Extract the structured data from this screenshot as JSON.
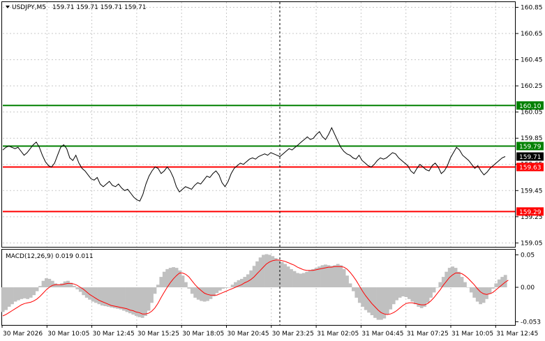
{
  "header": {
    "symbol_label": "USDJPY,M5",
    "ohlc": "159.71 159.71 159.71 159.71"
  },
  "macd_header": {
    "label": "MACD(12,26,9) 0.019 0.011"
  },
  "chart_data": [
    {
      "type": "line",
      "title": "USDJPY,M5",
      "ylim": [
        159.02,
        160.89
      ],
      "y_ticks": [
        "160.85",
        "160.65",
        "160.45",
        "160.25",
        "160.05",
        "159.85",
        "159.65",
        "159.45",
        "159.25",
        "159.05"
      ],
      "y_tick_values": [
        160.85,
        160.65,
        160.45,
        160.25,
        160.05,
        159.85,
        159.65,
        159.45,
        159.25,
        159.05
      ],
      "x_ticks": [
        "30 Mar 2026",
        "30 Mar 10:05",
        "30 Mar 12:45",
        "30 Mar 15:25",
        "30 Mar 18:05",
        "30 Mar 20:45",
        "30 Mar 23:25",
        "31 Mar 02:05",
        "31 Mar 04:45",
        "31 Mar 07:25",
        "31 Mar 10:05",
        "31 Mar 12:45"
      ],
      "current_price": {
        "label": "159.71",
        "value": 159.71
      },
      "levels": [
        {
          "label": "160.10",
          "value": 160.1,
          "color": "#008000"
        },
        {
          "label": "159.79",
          "value": 159.79,
          "color": "#008000"
        },
        {
          "label": "159.63",
          "value": 159.63,
          "color": "#ff0000"
        },
        {
          "label": "159.29",
          "value": 159.29,
          "color": "#ff0000"
        }
      ],
      "series": [
        {
          "color": "#000000",
          "values": [
            159.76,
            159.78,
            159.79,
            159.78,
            159.77,
            159.78,
            159.75,
            159.72,
            159.74,
            159.77,
            159.8,
            159.82,
            159.78,
            159.72,
            159.67,
            159.64,
            159.63,
            159.66,
            159.72,
            159.78,
            159.8,
            159.77,
            159.7,
            159.68,
            159.72,
            159.66,
            159.62,
            159.6,
            159.57,
            159.54,
            159.53,
            159.55,
            159.5,
            159.48,
            159.5,
            159.52,
            159.49,
            159.48,
            159.5,
            159.47,
            159.45,
            159.46,
            159.43,
            159.4,
            159.38,
            159.37,
            159.42,
            159.5,
            159.56,
            159.6,
            159.63,
            159.62,
            159.58,
            159.6,
            159.63,
            159.6,
            159.55,
            159.48,
            159.44,
            159.46,
            159.48,
            159.47,
            159.46,
            159.49,
            159.51,
            159.5,
            159.53,
            159.56,
            159.55,
            159.58,
            159.6,
            159.57,
            159.51,
            159.48,
            159.52,
            159.58,
            159.62,
            159.64,
            159.66,
            159.65,
            159.67,
            159.69,
            159.7,
            159.69,
            159.71,
            159.72,
            159.73,
            159.72,
            159.74,
            159.73,
            159.72,
            159.71,
            159.73,
            159.75,
            159.77,
            159.76,
            159.78,
            159.8,
            159.82,
            159.84,
            159.86,
            159.84,
            159.85,
            159.88,
            159.9,
            159.86,
            159.84,
            159.88,
            159.93,
            159.88,
            159.83,
            159.78,
            159.75,
            159.73,
            159.72,
            159.7,
            159.69,
            159.72,
            159.68,
            159.66,
            159.64,
            159.63,
            159.65,
            159.68,
            159.7,
            159.69,
            159.7,
            159.72,
            159.74,
            159.73,
            159.7,
            159.68,
            159.66,
            159.64,
            159.6,
            159.58,
            159.62,
            159.65,
            159.63,
            159.61,
            159.6,
            159.64,
            159.66,
            159.63,
            159.58,
            159.6,
            159.64,
            159.7,
            159.74,
            159.78,
            159.76,
            159.72,
            159.7,
            159.68,
            159.65,
            159.62,
            159.64,
            159.6,
            159.57,
            159.59,
            159.62,
            159.64,
            159.66,
            159.68,
            159.7,
            159.71
          ]
        }
      ]
    },
    {
      "type": "bar",
      "title": "MACD(12,26,9) 0.019 0.011",
      "ylim": [
        -0.058,
        0.058
      ],
      "y_ticks": [
        "0.05",
        "0.00",
        "-0.053"
      ],
      "y_tick_values": [
        0.05,
        0.0,
        -0.053
      ],
      "series": [
        {
          "name": "MACD",
          "color": "#c0c0c0",
          "values": [
            -0.038,
            -0.035,
            -0.03,
            -0.026,
            -0.022,
            -0.02,
            -0.018,
            -0.017,
            -0.018,
            -0.016,
            -0.012,
            -0.006,
            0.002,
            0.01,
            0.014,
            0.013,
            0.01,
            0.006,
            0.004,
            0.006,
            0.009,
            0.01,
            0.007,
            0.002,
            -0.003,
            -0.007,
            -0.012,
            -0.016,
            -0.019,
            -0.022,
            -0.024,
            -0.026,
            -0.028,
            -0.029,
            -0.03,
            -0.031,
            -0.032,
            -0.033,
            -0.034,
            -0.036,
            -0.038,
            -0.04,
            -0.042,
            -0.044,
            -0.046,
            -0.047,
            -0.044,
            -0.036,
            -0.024,
            -0.01,
            0.004,
            0.016,
            0.024,
            0.028,
            0.03,
            0.031,
            0.03,
            0.026,
            0.018,
            0.008,
            -0.002,
            -0.01,
            -0.016,
            -0.019,
            -0.021,
            -0.022,
            -0.021,
            -0.018,
            -0.014,
            -0.009,
            -0.005,
            -0.002,
            -0.001,
            0.0,
            0.004,
            0.008,
            0.011,
            0.013,
            0.016,
            0.02,
            0.026,
            0.033,
            0.04,
            0.046,
            0.05,
            0.051,
            0.05,
            0.048,
            0.045,
            0.042,
            0.039,
            0.036,
            0.032,
            0.028,
            0.025,
            0.022,
            0.021,
            0.022,
            0.024,
            0.026,
            0.028,
            0.03,
            0.032,
            0.034,
            0.035,
            0.034,
            0.033,
            0.034,
            0.036,
            0.034,
            0.028,
            0.018,
            0.006,
            -0.006,
            -0.016,
            -0.024,
            -0.03,
            -0.035,
            -0.039,
            -0.043,
            -0.047,
            -0.05,
            -0.05,
            -0.048,
            -0.042,
            -0.034,
            -0.026,
            -0.02,
            -0.016,
            -0.014,
            -0.015,
            -0.018,
            -0.022,
            -0.026,
            -0.03,
            -0.032,
            -0.03,
            -0.024,
            -0.016,
            -0.008,
            0.0,
            0.008,
            0.016,
            0.024,
            0.03,
            0.032,
            0.03,
            0.024,
            0.016,
            0.008,
            0.0,
            -0.008,
            -0.016,
            -0.022,
            -0.026,
            -0.024,
            -0.018,
            -0.01,
            -0.002,
            0.006,
            0.012,
            0.016,
            0.019
          ]
        },
        {
          "name": "Signal",
          "color": "#ff0000",
          "values": [
            -0.044,
            -0.042,
            -0.039,
            -0.036,
            -0.033,
            -0.03,
            -0.027,
            -0.025,
            -0.024,
            -0.023,
            -0.021,
            -0.018,
            -0.014,
            -0.009,
            -0.004,
            0.0,
            0.003,
            0.004,
            0.004,
            0.004,
            0.005,
            0.006,
            0.006,
            0.005,
            0.003,
            0.0,
            -0.003,
            -0.007,
            -0.011,
            -0.014,
            -0.017,
            -0.02,
            -0.022,
            -0.024,
            -0.026,
            -0.028,
            -0.029,
            -0.03,
            -0.031,
            -0.032,
            -0.033,
            -0.035,
            -0.036,
            -0.038,
            -0.039,
            -0.041,
            -0.041,
            -0.04,
            -0.037,
            -0.032,
            -0.025,
            -0.016,
            -0.008,
            0.0,
            0.007,
            0.013,
            0.018,
            0.022,
            0.022,
            0.02,
            0.016,
            0.01,
            0.004,
            -0.001,
            -0.005,
            -0.009,
            -0.011,
            -0.012,
            -0.012,
            -0.012,
            -0.01,
            -0.008,
            -0.006,
            -0.004,
            -0.002,
            0.0,
            0.002,
            0.004,
            0.007,
            0.009,
            0.012,
            0.016,
            0.021,
            0.026,
            0.031,
            0.036,
            0.039,
            0.041,
            0.042,
            0.042,
            0.041,
            0.04,
            0.038,
            0.036,
            0.034,
            0.031,
            0.029,
            0.027,
            0.026,
            0.026,
            0.026,
            0.027,
            0.028,
            0.029,
            0.03,
            0.031,
            0.031,
            0.032,
            0.032,
            0.032,
            0.031,
            0.028,
            0.023,
            0.017,
            0.01,
            0.002,
            -0.006,
            -0.013,
            -0.019,
            -0.025,
            -0.03,
            -0.035,
            -0.039,
            -0.041,
            -0.042,
            -0.041,
            -0.039,
            -0.036,
            -0.032,
            -0.028,
            -0.025,
            -0.024,
            -0.024,
            -0.025,
            -0.026,
            -0.027,
            -0.027,
            -0.025,
            -0.021,
            -0.016,
            -0.01,
            -0.004,
            0.003,
            0.009,
            0.015,
            0.019,
            0.022,
            0.022,
            0.021,
            0.018,
            0.014,
            0.009,
            0.004,
            -0.002,
            -0.007,
            -0.01,
            -0.011,
            -0.01,
            -0.008,
            -0.004,
            0.0,
            0.004,
            0.008,
            0.011
          ]
        }
      ]
    }
  ]
}
